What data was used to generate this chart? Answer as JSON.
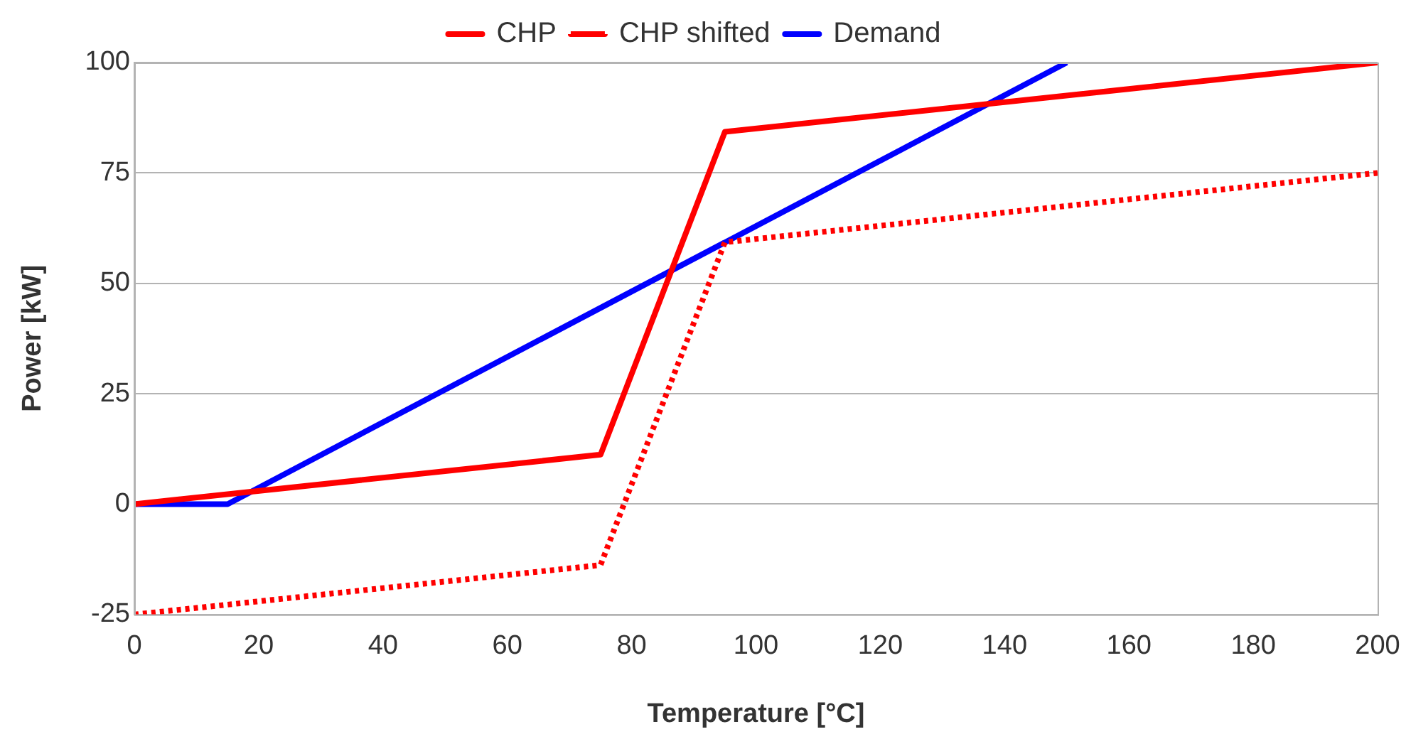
{
  "chart_data": {
    "type": "line",
    "xlabel": "Temperature [°C]",
    "ylabel": "Power [kW]",
    "series": [
      {
        "name": "CHP",
        "color": "#ff0000",
        "x": [
          0,
          75,
          95,
          200
        ],
        "values": [
          0,
          11.2,
          84.3,
          100
        ],
        "line_style": "solid"
      },
      {
        "name": "CHP shifted",
        "color": "#ff0000",
        "x": [
          0,
          75,
          95,
          200
        ],
        "values": [
          -25,
          -13.8,
          59.3,
          75
        ],
        "line_style": "dotted"
      },
      {
        "name": "Demand",
        "color": "#0000ff",
        "x": [
          0,
          15,
          150
        ],
        "values": [
          0,
          0,
          100
        ],
        "line_style": "solid"
      }
    ],
    "xlim": [
      0,
      200
    ],
    "xticks": [
      0,
      20,
      40,
      60,
      80,
      100,
      120,
      140,
      160,
      180,
      200
    ],
    "ylim": [
      -25,
      100
    ],
    "yticks": [
      -25,
      0,
      25,
      50,
      75,
      100
    ],
    "grid": "y",
    "legend": "top",
    "marker": "none"
  }
}
